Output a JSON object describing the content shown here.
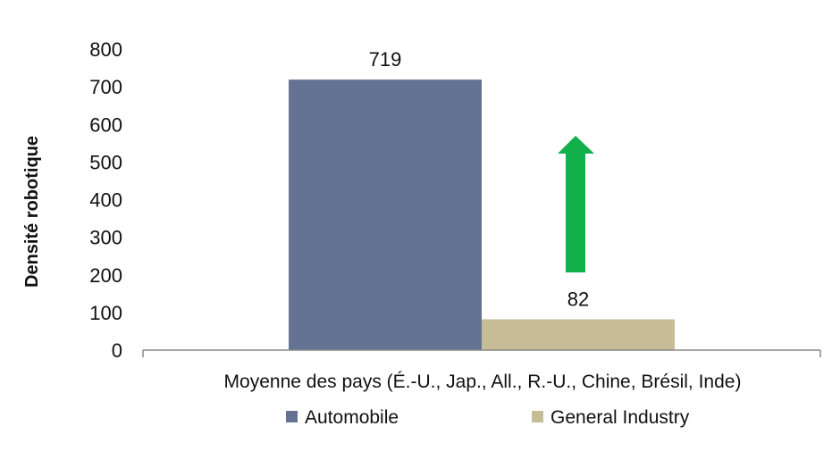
{
  "chart_data": {
    "type": "bar",
    "categories": [
      "Moyenne des pays (É.-U., Jap., All., R.-U., Chine, Brésil, Inde)"
    ],
    "series": [
      {
        "name": "Automobile",
        "values": [
          719
        ],
        "color": "#647394"
      },
      {
        "name": "General Industry",
        "values": [
          82
        ],
        "color": "#c6bd97"
      }
    ],
    "data_labels": [
      "719",
      "82"
    ],
    "ylabel": "Densité robotique",
    "xlabel": "",
    "ylim": [
      0,
      800
    ],
    "yticks": [
      "0",
      "100",
      "200",
      "300",
      "400",
      "500",
      "600",
      "700",
      "800"
    ],
    "grid": false,
    "legend": "bottom",
    "annotation": {
      "type": "arrow-up",
      "color": "#12b04a"
    }
  }
}
